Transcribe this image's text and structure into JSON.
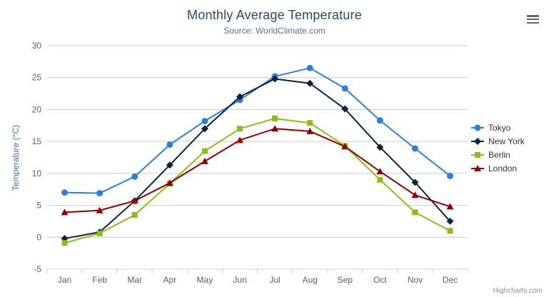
{
  "header": {
    "title": "Monthly Average Temperature",
    "subtitle": "Source: WorldClimate.com"
  },
  "credits": {
    "label": "Highcharts.com"
  },
  "colors": {
    "background": "#ffffff",
    "title": "#274b6d",
    "subtitle": "#4d759e",
    "y_axis_title": "#4572a7",
    "axis_label": "#606060",
    "gridline": "#cccccc",
    "axis_line": "#c0d0e0",
    "legend_text": "#333333",
    "menu_icon": "#666666",
    "credits_text": "#909090"
  },
  "chart_data": {
    "type": "line",
    "title": "Monthly Average Temperature",
    "subtitle": "Source: WorldClimate.com",
    "xlabel": "",
    "ylabel": "Temperature (°C)",
    "ylim": [
      -5,
      30
    ],
    "yticks": [
      -5,
      0,
      5,
      10,
      15,
      20,
      25,
      30
    ],
    "grid": true,
    "legend_position": "right",
    "categories": [
      "Jan",
      "Feb",
      "Mar",
      "Apr",
      "May",
      "Jun",
      "Jul",
      "Aug",
      "Sep",
      "Oct",
      "Nov",
      "Dec"
    ],
    "series": [
      {
        "name": "Tokyo",
        "color": "#2f7ed8",
        "marker": "circle",
        "values": [
          7.0,
          6.9,
          9.5,
          14.5,
          18.2,
          21.5,
          25.2,
          26.5,
          23.3,
          18.3,
          13.9,
          9.6
        ]
      },
      {
        "name": "New York",
        "color": "#0d233a",
        "marker": "diamond",
        "values": [
          -0.2,
          0.8,
          5.7,
          11.3,
          17.0,
          22.0,
          24.8,
          24.1,
          20.1,
          14.1,
          8.6,
          2.5
        ]
      },
      {
        "name": "Berlin",
        "color": "#8bbc21",
        "marker": "square",
        "values": [
          -0.9,
          0.6,
          3.5,
          8.4,
          13.5,
          17.0,
          18.6,
          17.9,
          14.3,
          9.0,
          3.9,
          1.0
        ]
      },
      {
        "name": "London",
        "color": "#910000",
        "marker": "triangle",
        "values": [
          3.9,
          4.2,
          5.7,
          8.5,
          11.9,
          15.2,
          17.0,
          16.6,
          14.2,
          10.3,
          6.6,
          4.8
        ]
      }
    ]
  }
}
